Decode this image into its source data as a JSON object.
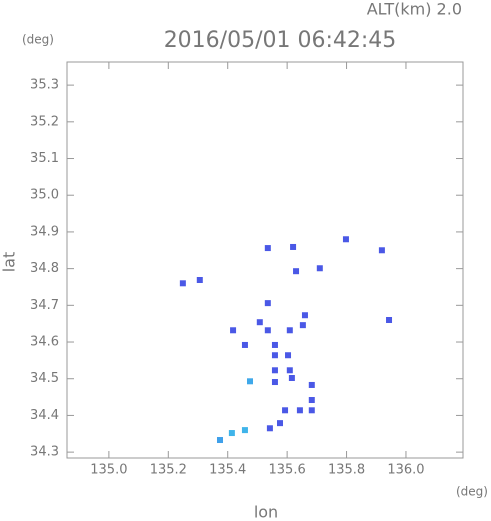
{
  "chart_data": {
    "type": "scatter",
    "title": "2016/05/01 06:42:45",
    "subtitle": "ALT(km) 2.0",
    "x_label": "lon",
    "x_unit": "(deg)",
    "y_label": "lat",
    "y_unit": "(deg)",
    "xlim": [
      134.859,
      136.192
    ],
    "ylim": [
      34.284,
      35.363
    ],
    "xticks": [
      {
        "value": 135,
        "label": "135.0"
      },
      135.2,
      135.4,
      135.6,
      135.8,
      {
        "value": 136,
        "label": "136.0"
      }
    ],
    "yticks": [
      34.3,
      34.4,
      34.5,
      34.6,
      34.7,
      34.8,
      34.9,
      {
        "value": 35,
        "label": "35.0"
      },
      35.1,
      35.2,
      35.3
    ],
    "x": [
      135.249,
      135.306,
      135.535,
      135.535,
      135.62,
      135.63,
      135.71,
      135.798,
      135.919,
      135.943,
      135.508,
      135.535,
      135.418,
      135.458,
      135.609,
      135.66,
      135.653,
      135.559,
      135.559,
      135.603,
      135.559,
      135.609,
      135.559,
      135.616,
      135.475,
      135.683,
      135.683,
      135.683,
      135.643,
      135.593,
      135.576,
      135.542,
      135.458,
      135.414,
      135.374
    ],
    "values": [
      34.76,
      34.769,
      34.706,
      34.856,
      34.859,
      34.793,
      34.801,
      34.88,
      34.85,
      34.66,
      34.654,
      34.632,
      34.632,
      34.592,
      34.632,
      34.673,
      34.646,
      34.592,
      34.564,
      34.564,
      34.523,
      34.523,
      34.491,
      34.502,
      34.493,
      34.483,
      34.442,
      34.414,
      34.414,
      34.414,
      34.379,
      34.365,
      34.36,
      34.352,
      34.333
    ],
    "colors": [
      "#4a58e6",
      "#4a58e6",
      "#4a58e6",
      "#4a58e6",
      "#4a58e6",
      "#4a58e6",
      "#4a58e6",
      "#4a58e6",
      "#4a58e6",
      "#4a58e6",
      "#4a58e6",
      "#4a58e6",
      "#4a58e6",
      "#4a58e6",
      "#4a58e6",
      "#4a58e6",
      "#4a58e6",
      "#4a58e6",
      "#4a58e6",
      "#4a58e6",
      "#4a58e6",
      "#4a58e6",
      "#4a58e6",
      "#4a58e6",
      "#3fa8ea",
      "#4a58e6",
      "#4a58e6",
      "#4a58e6",
      "#4a58e6",
      "#4a58e6",
      "#4a58e6",
      "#4a58e6",
      "#3fb4ea",
      "#3fb4ea",
      "#3fa0ea"
    ]
  }
}
